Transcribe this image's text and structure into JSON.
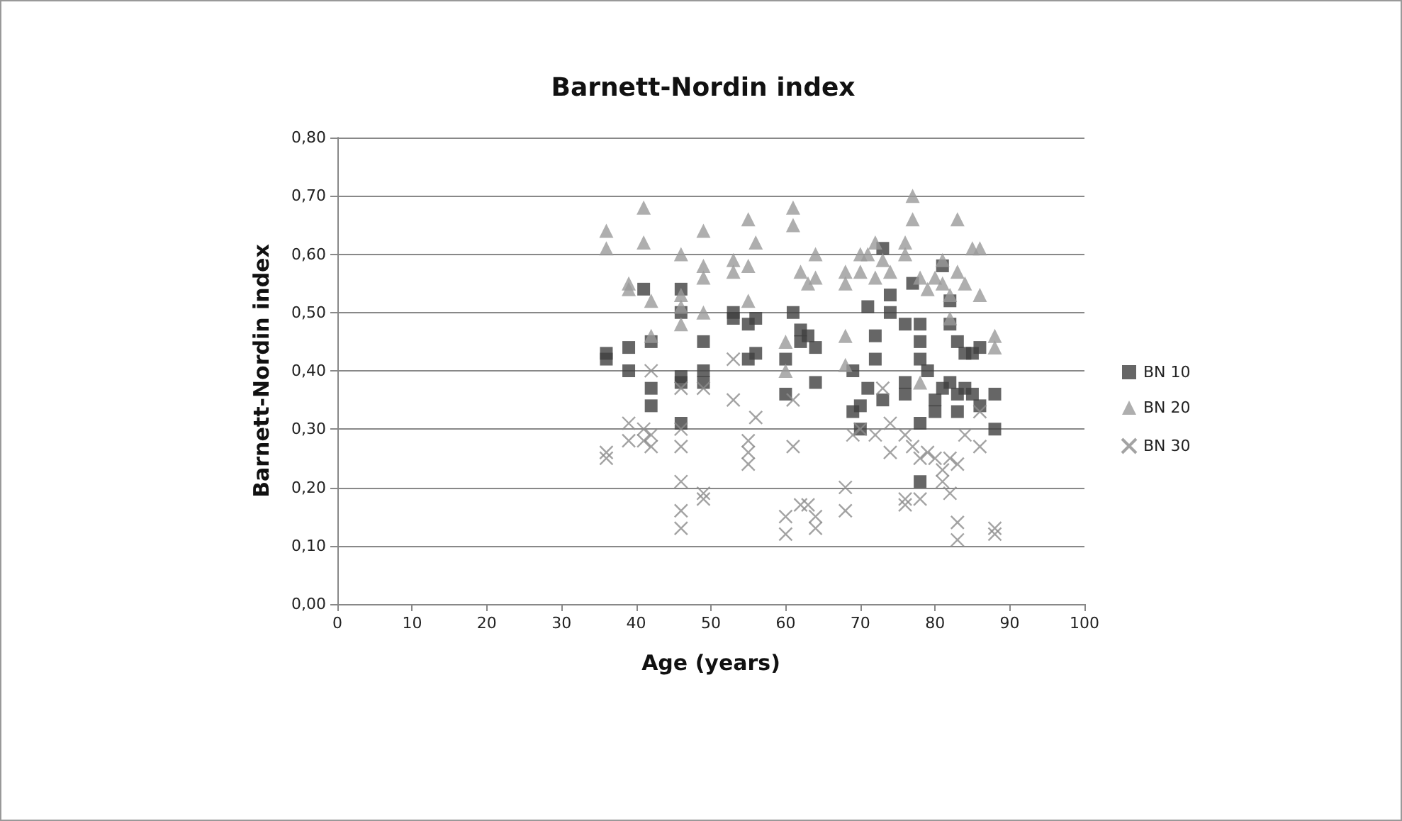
{
  "chart_data": {
    "type": "scatter",
    "title": "Barnett-Nordin index",
    "xlabel": "Age (years)",
    "ylabel": "Barnett-Nordin index",
    "xlim": [
      0,
      100
    ],
    "xticks": [
      0,
      10,
      20,
      30,
      40,
      50,
      60,
      70,
      80,
      90,
      100
    ],
    "ylim": [
      0,
      0.8
    ],
    "yticks": [
      {
        "value": 0,
        "label": "0,00"
      },
      {
        "value": 0.1,
        "label": "0,10"
      },
      {
        "value": 0.2,
        "label": "0,20"
      },
      {
        "value": 0.3,
        "label": "0,30"
      },
      {
        "value": 0.4,
        "label": "0,40"
      },
      {
        "value": 0.5,
        "label": "0,50"
      },
      {
        "value": 0.6,
        "label": "0,60"
      },
      {
        "value": 0.7,
        "label": "0,70"
      },
      {
        "value": 0.8,
        "label": "0,80"
      }
    ],
    "grid": "y",
    "legend": "right",
    "series": [
      {
        "name": "BN 10",
        "color": "#404040",
        "marker": "square",
        "x": [
          36,
          36,
          39,
          39,
          41,
          42,
          42,
          42,
          46,
          46,
          46,
          46,
          46,
          49,
          49,
          49,
          53,
          53,
          55,
          55,
          56,
          56,
          60,
          60,
          61,
          62,
          62,
          63,
          64,
          64,
          69,
          69,
          70,
          70,
          71,
          71,
          72,
          72,
          73,
          73,
          74,
          74,
          76,
          76,
          76,
          77,
          78,
          78,
          78,
          78,
          78,
          79,
          80,
          80,
          81,
          81,
          82,
          82,
          82,
          83,
          83,
          83,
          84,
          84,
          85,
          85,
          86,
          86,
          88,
          88
        ],
        "values": [
          0.43,
          0.42,
          0.44,
          0.4,
          0.54,
          0.45,
          0.37,
          0.34,
          0.54,
          0.5,
          0.39,
          0.38,
          0.31,
          0.45,
          0.4,
          0.38,
          0.49,
          0.5,
          0.48,
          0.42,
          0.43,
          0.49,
          0.42,
          0.36,
          0.5,
          0.47,
          0.45,
          0.46,
          0.44,
          0.38,
          0.4,
          0.33,
          0.34,
          0.3,
          0.51,
          0.37,
          0.46,
          0.42,
          0.35,
          0.61,
          0.53,
          0.5,
          0.48,
          0.38,
          0.36,
          0.55,
          0.48,
          0.45,
          0.42,
          0.31,
          0.21,
          0.4,
          0.35,
          0.33,
          0.58,
          0.37,
          0.52,
          0.48,
          0.38,
          0.45,
          0.33,
          0.36,
          0.43,
          0.37,
          0.43,
          0.36,
          0.44,
          0.34,
          0.36,
          0.3
        ]
      },
      {
        "name": "BN 20",
        "color": "#9a9a9a",
        "marker": "triangle",
        "x": [
          36,
          36,
          39,
          39,
          41,
          41,
          42,
          42,
          46,
          46,
          46,
          46,
          49,
          49,
          49,
          49,
          53,
          53,
          55,
          55,
          55,
          56,
          60,
          60,
          61,
          61,
          62,
          63,
          64,
          64,
          68,
          68,
          68,
          70,
          70,
          71,
          72,
          72,
          73,
          74,
          76,
          76,
          77,
          77,
          78,
          79,
          80,
          81,
          81,
          82,
          82,
          83,
          83,
          84,
          85,
          86,
          86,
          88,
          88,
          78,
          68
        ],
        "values": [
          0.64,
          0.61,
          0.55,
          0.54,
          0.68,
          0.62,
          0.52,
          0.46,
          0.6,
          0.53,
          0.51,
          0.48,
          0.64,
          0.58,
          0.56,
          0.5,
          0.59,
          0.57,
          0.66,
          0.58,
          0.52,
          0.62,
          0.45,
          0.4,
          0.68,
          0.65,
          0.57,
          0.55,
          0.6,
          0.56,
          0.57,
          0.55,
          0.46,
          0.6,
          0.57,
          0.6,
          0.62,
          0.56,
          0.59,
          0.57,
          0.62,
          0.6,
          0.7,
          0.66,
          0.56,
          0.54,
          0.56,
          0.59,
          0.55,
          0.53,
          0.49,
          0.66,
          0.57,
          0.55,
          0.61,
          0.61,
          0.53,
          0.46,
          0.44,
          0.38,
          0.41
        ]
      },
      {
        "name": "BN 30",
        "color": "#8c8c8c",
        "marker": "cross",
        "x": [
          36,
          36,
          39,
          39,
          41,
          41,
          42,
          42,
          42,
          46,
          46,
          46,
          46,
          46,
          46,
          49,
          49,
          49,
          53,
          53,
          55,
          55,
          55,
          56,
          60,
          60,
          61,
          61,
          62,
          63,
          64,
          64,
          68,
          68,
          69,
          70,
          72,
          73,
          74,
          74,
          76,
          76,
          76,
          77,
          78,
          78,
          79,
          80,
          81,
          81,
          82,
          82,
          83,
          83,
          83,
          84,
          86,
          86,
          88,
          88
        ],
        "values": [
          0.26,
          0.25,
          0.31,
          0.28,
          0.3,
          0.28,
          0.4,
          0.29,
          0.27,
          0.37,
          0.3,
          0.27,
          0.21,
          0.16,
          0.13,
          0.37,
          0.19,
          0.18,
          0.42,
          0.35,
          0.28,
          0.26,
          0.24,
          0.32,
          0.15,
          0.12,
          0.35,
          0.27,
          0.17,
          0.17,
          0.15,
          0.13,
          0.2,
          0.16,
          0.29,
          0.3,
          0.29,
          0.37,
          0.31,
          0.26,
          0.29,
          0.18,
          0.17,
          0.27,
          0.25,
          0.18,
          0.26,
          0.25,
          0.23,
          0.21,
          0.19,
          0.25,
          0.14,
          0.11,
          0.24,
          0.29,
          0.33,
          0.27,
          0.13,
          0.12
        ]
      }
    ]
  }
}
